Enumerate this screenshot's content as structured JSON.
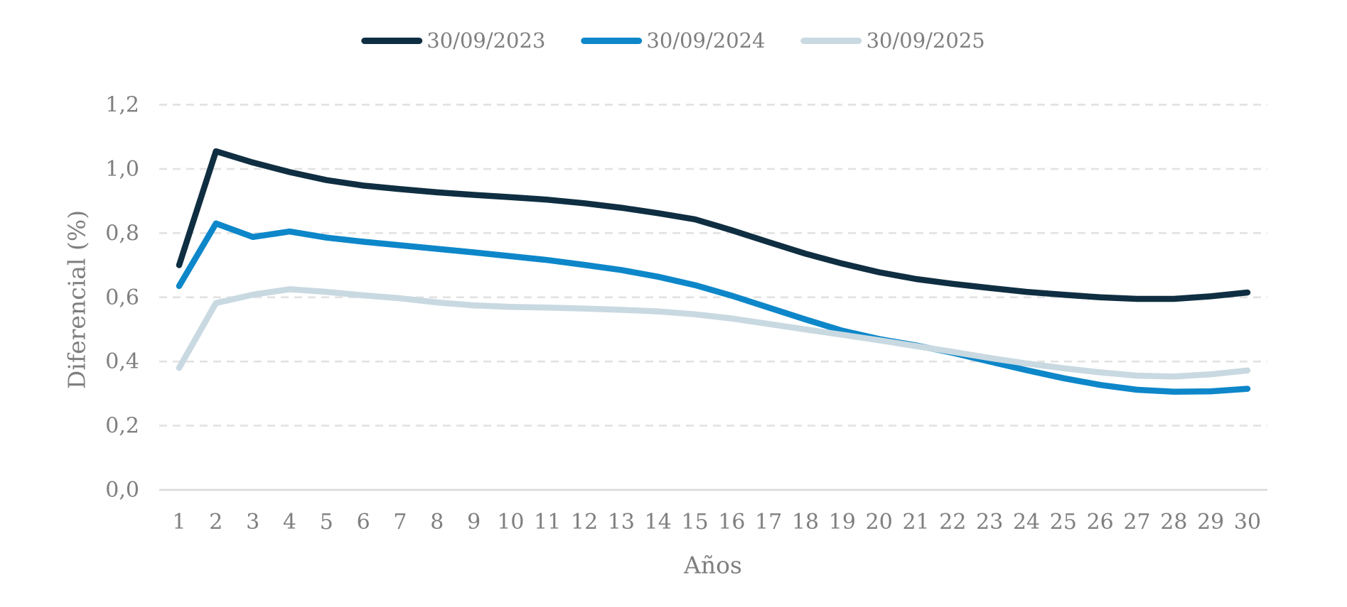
{
  "chart_data": {
    "type": "line",
    "title": "",
    "xlabel": "Años",
    "ylabel": "Diferencial (%)",
    "legend_position": "top-center",
    "grid": "horizontal-dashed",
    "xlim": [
      1,
      30
    ],
    "ylim": [
      0,
      1.2
    ],
    "categories": [
      1,
      2,
      3,
      4,
      5,
      6,
      7,
      8,
      9,
      10,
      11,
      12,
      13,
      14,
      15,
      16,
      17,
      18,
      19,
      20,
      21,
      22,
      23,
      24,
      25,
      26,
      27,
      28,
      29,
      30
    ],
    "yticks": [
      {
        "value": 0.0,
        "label": "0,0"
      },
      {
        "value": 0.2,
        "label": "0,2"
      },
      {
        "value": 0.4,
        "label": "0,4"
      },
      {
        "value": 0.6,
        "label": "0,6"
      },
      {
        "value": 0.8,
        "label": "0,8"
      },
      {
        "value": 1.0,
        "label": "1,0"
      },
      {
        "value": 1.2,
        "label": "1,2"
      }
    ],
    "series": [
      {
        "name": "30/09/2023",
        "color": "#0f2e41",
        "values": [
          0.7,
          1.055,
          1.02,
          0.99,
          0.965,
          0.948,
          0.937,
          0.927,
          0.919,
          0.912,
          0.904,
          0.893,
          0.879,
          0.862,
          0.843,
          0.809,
          0.772,
          0.736,
          0.705,
          0.678,
          0.657,
          0.642,
          0.629,
          0.617,
          0.608,
          0.6,
          0.595,
          0.595,
          0.603,
          0.615
        ]
      },
      {
        "name": "30/09/2024",
        "color": "#0d87c9",
        "values": [
          0.635,
          0.83,
          0.788,
          0.805,
          0.786,
          0.773,
          0.762,
          0.751,
          0.74,
          0.728,
          0.716,
          0.701,
          0.685,
          0.664,
          0.638,
          0.605,
          0.568,
          0.531,
          0.496,
          0.47,
          0.45,
          0.427,
          0.4,
          0.373,
          0.348,
          0.327,
          0.312,
          0.306,
          0.307,
          0.315
        ]
      },
      {
        "name": "30/09/2025",
        "color": "#c9d9e1",
        "values": [
          0.38,
          0.582,
          0.608,
          0.625,
          0.617,
          0.606,
          0.597,
          0.584,
          0.575,
          0.57,
          0.568,
          0.565,
          0.561,
          0.556,
          0.547,
          0.534,
          0.517,
          0.5,
          0.483,
          0.466,
          0.448,
          0.43,
          0.411,
          0.394,
          0.379,
          0.366,
          0.356,
          0.353,
          0.36,
          0.372
        ]
      }
    ]
  },
  "colors": {
    "background": "#ffffff",
    "gridline": "#e2e2e2",
    "axis_line": "#d9d9d9",
    "text": "#7f7f7f"
  }
}
